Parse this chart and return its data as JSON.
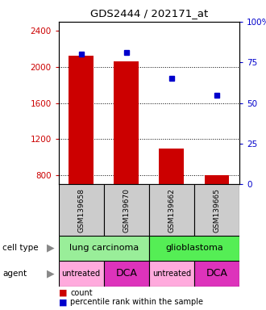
{
  "title": "GDS2444 / 202171_at",
  "samples": [
    "GSM139658",
    "GSM139670",
    "GSM139662",
    "GSM139665"
  ],
  "bar_values": [
    2120,
    2065,
    1100,
    800
  ],
  "scatter_values": [
    80,
    81,
    65,
    55
  ],
  "ylim_left": [
    700,
    2500
  ],
  "ylim_right": [
    0,
    100
  ],
  "yticks_left": [
    800,
    1200,
    1600,
    2000,
    2400
  ],
  "yticks_right": [
    0,
    25,
    50,
    75,
    100
  ],
  "ytick_labels_right": [
    "0",
    "25",
    "50",
    "75",
    "100%"
  ],
  "bar_color": "#cc0000",
  "scatter_color": "#0000cc",
  "agent_row": [
    "untreated",
    "DCA",
    "untreated",
    "DCA"
  ],
  "agent_colors": [
    "#ffaadd",
    "#dd33bb",
    "#ffaadd",
    "#dd33bb"
  ],
  "cell_type_lung_color": "#99ee99",
  "cell_type_glio_color": "#55ee55",
  "bg_color": "#ffffff",
  "plot_bg": "#ffffff",
  "label_color_left": "#cc0000",
  "label_color_right": "#0000cc",
  "bar_width": 0.55
}
